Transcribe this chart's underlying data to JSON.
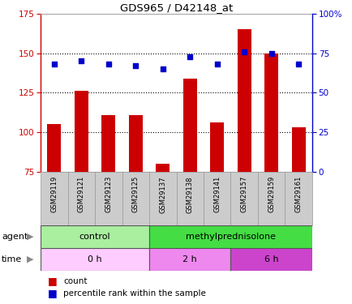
{
  "title": "GDS965 / D42148_at",
  "samples": [
    "GSM29119",
    "GSM29121",
    "GSM29123",
    "GSM29125",
    "GSM29137",
    "GSM29138",
    "GSM29141",
    "GSM29157",
    "GSM29159",
    "GSM29161"
  ],
  "counts": [
    105,
    126,
    111,
    111,
    80,
    134,
    106,
    165,
    150,
    103
  ],
  "percentiles": [
    68,
    70,
    68,
    67,
    65,
    73,
    68,
    76,
    75,
    68
  ],
  "ylim_left": [
    75,
    175
  ],
  "ylim_right": [
    0,
    100
  ],
  "yticks_left": [
    75,
    100,
    125,
    150,
    175
  ],
  "yticks_right": [
    0,
    25,
    50,
    75,
    100
  ],
  "bar_color": "#cc0000",
  "dot_color": "#0000cc",
  "grid_color": "#000000",
  "agent_labels": [
    {
      "label": "control",
      "start": 0,
      "end": 4,
      "color": "#aaeea0"
    },
    {
      "label": "methylprednisolone",
      "start": 4,
      "end": 10,
      "color": "#44dd44"
    }
  ],
  "time_labels": [
    {
      "label": "0 h",
      "start": 0,
      "end": 4,
      "color": "#ffccff"
    },
    {
      "label": "2 h",
      "start": 4,
      "end": 7,
      "color": "#ee88ee"
    },
    {
      "label": "6 h",
      "start": 7,
      "end": 10,
      "color": "#cc44cc"
    }
  ],
  "legend_count_color": "#cc0000",
  "legend_dot_color": "#0000cc",
  "legend_count_label": "count",
  "legend_dot_label": "percentile rank within the sample",
  "agent_row_label": "agent",
  "time_row_label": "time",
  "background_color": "#ffffff",
  "plot_bg_color": "#ffffff",
  "border_color": "#aaaaaa"
}
